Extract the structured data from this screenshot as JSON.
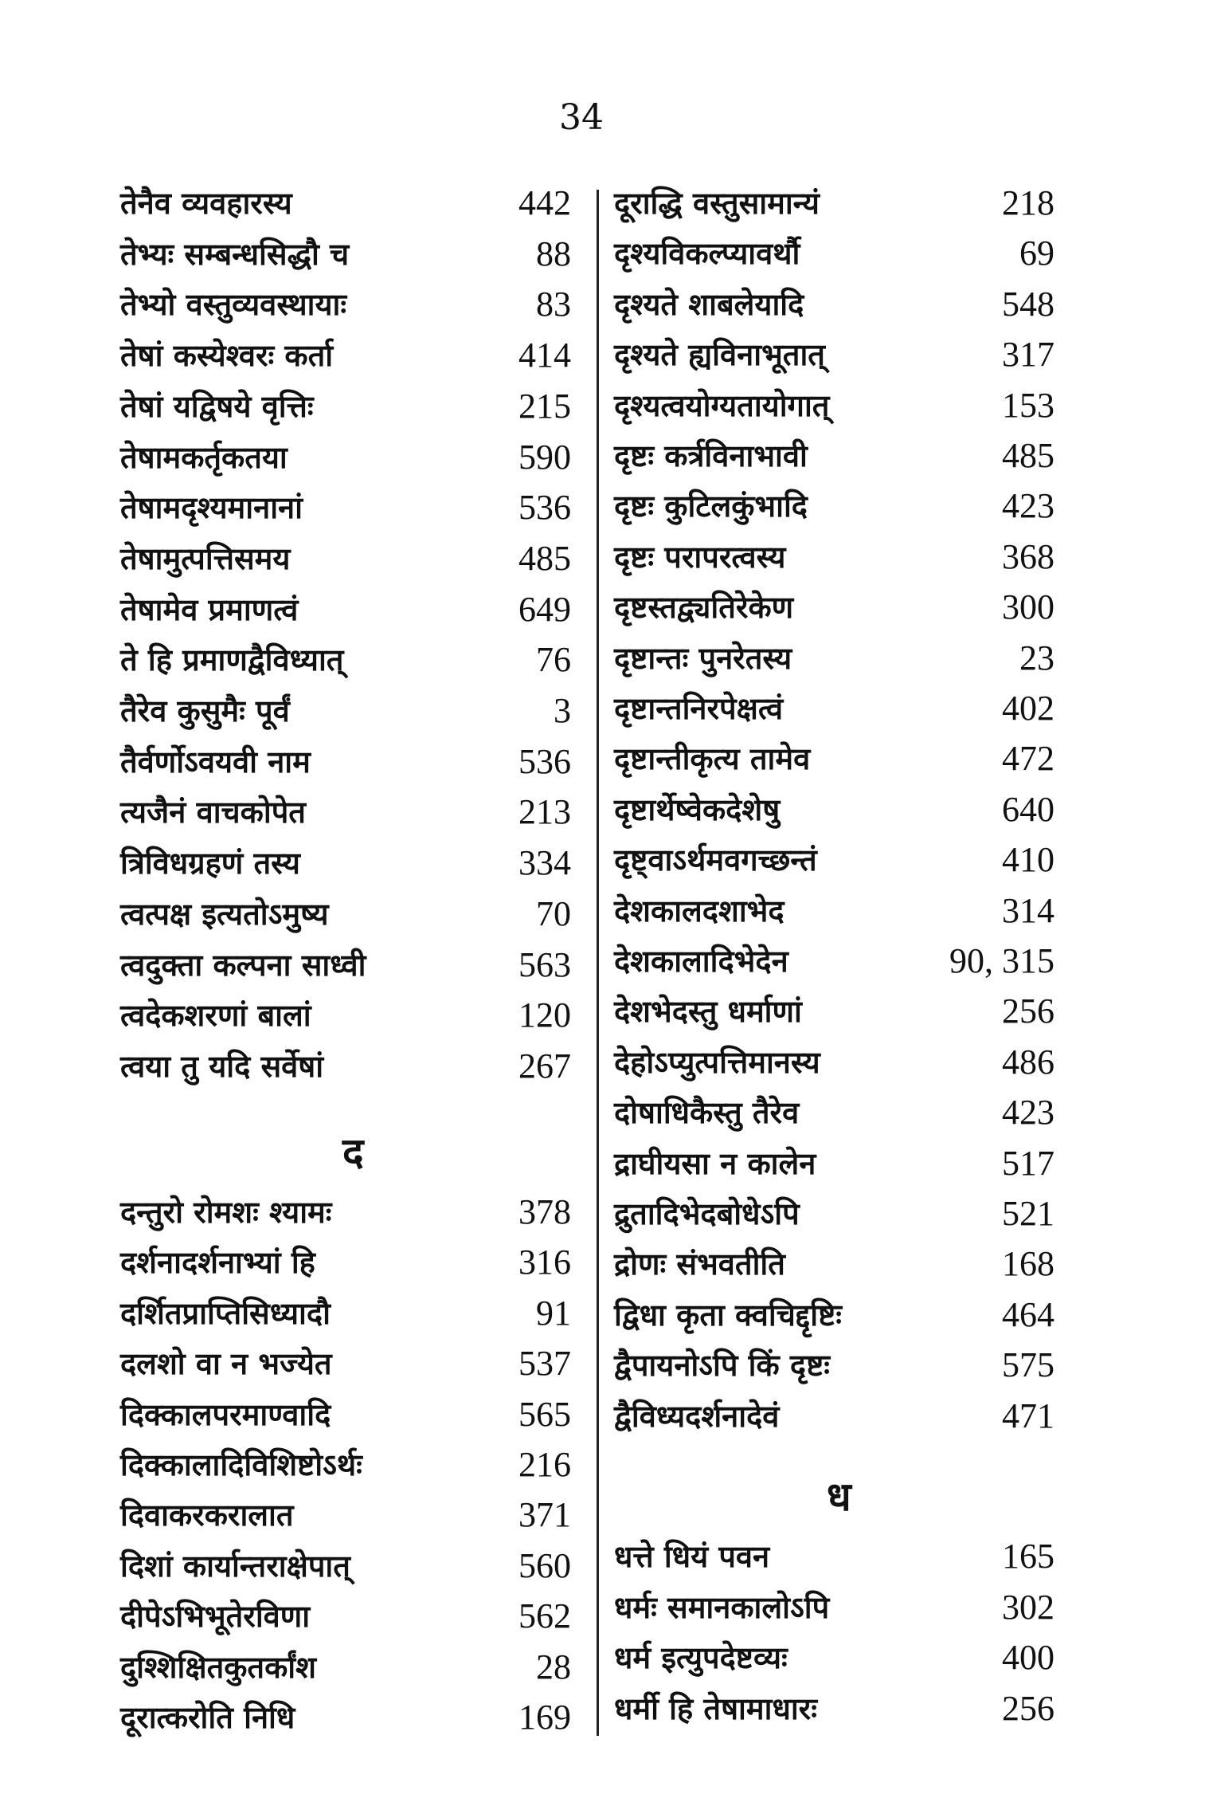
{
  "page_number": "34",
  "left": {
    "entries_top": [
      {
        "text": "तेनैव व्यवहारस्य",
        "page": "442"
      },
      {
        "text": "तेभ्यः सम्बन्धसिद्धौ च",
        "page": "88"
      },
      {
        "text": "तेभ्यो वस्तुव्यवस्थायाः",
        "page": "83"
      },
      {
        "text": "तेषां कस्येश्वरः कर्ता",
        "page": "414"
      },
      {
        "text": "तेषां यद्विषये वृत्तिः",
        "page": "215"
      },
      {
        "text": "तेषामकर्तृकतया",
        "page": "590"
      },
      {
        "text": "तेषामदृश्यमानानां",
        "page": "536"
      },
      {
        "text": "तेषामुत्पत्तिसमय",
        "page": "485"
      },
      {
        "text": "तेषामेव प्रमाणत्वं",
        "page": "649"
      },
      {
        "text": "ते हि प्रमाणद्वैविध्यात्",
        "page": "76"
      },
      {
        "text": "तैरेव कुसुमैः पूर्वं",
        "page": "3"
      },
      {
        "text": "तैर्वर्णोऽवयवी नाम",
        "page": "536"
      },
      {
        "text": "त्यजैनं वाचकोपेत",
        "page": "213"
      },
      {
        "text": "त्रिविधग्रहणं तस्य",
        "page": "334"
      },
      {
        "text": "त्वत्पक्ष इत्यतोऽमुष्य",
        "page": "70"
      },
      {
        "text": "त्वदुक्ता कल्पना साध्वी",
        "page": "563"
      },
      {
        "text": "त्वदेकशरणां बालां",
        "page": "120"
      },
      {
        "text": "त्वया तु यदि सर्वेषां",
        "page": "267"
      }
    ],
    "heading": "द",
    "entries_bottom": [
      {
        "text": "दन्तुरो रोमशः श्यामः",
        "page": "378"
      },
      {
        "text": "दर्शनादर्शनाभ्यां हि",
        "page": "316"
      },
      {
        "text": "दर्शितप्राप्तिसिध्यादौ",
        "page": "91"
      },
      {
        "text": "दलशो वा न भज्येत",
        "page": "537"
      },
      {
        "text": "दिक्कालपरमाण्वादि",
        "page": "565"
      },
      {
        "text": "दिक्कालादिविशिष्टोऽर्थः",
        "page": "216"
      },
      {
        "text": "दिवाकरकरालात",
        "page": "371"
      },
      {
        "text": "दिशां कार्यान्तराक्षेपात्",
        "page": "560"
      },
      {
        "text": "दीपेऽभिभूतेरविणा",
        "page": "562"
      },
      {
        "text": "दुश्शिक्षितकुतर्कांश",
        "page": "28"
      },
      {
        "text": "दूरात्करोति निधि",
        "page": "169"
      }
    ]
  },
  "right": {
    "entries_top": [
      {
        "text": "दूराद्धि वस्तुसामान्यं",
        "page": "218"
      },
      {
        "text": "दृश्यविकल्प्यावर्थौ",
        "page": "69"
      },
      {
        "text": "दृश्यते शाबलेयादि",
        "page": "548"
      },
      {
        "text": "दृश्यते ह्यविनाभूतात्",
        "page": "317"
      },
      {
        "text": "दृश्यत्वयोग्यतायोगात्",
        "page": "153"
      },
      {
        "text": "दृष्टः कर्त्रविनाभावी",
        "page": "485"
      },
      {
        "text": "दृष्टः कुटिलकुंभादि",
        "page": "423"
      },
      {
        "text": "दृष्टः परापरत्वस्य",
        "page": "368"
      },
      {
        "text": "दृष्टस्तद्व्यतिरेकेण",
        "page": "300"
      },
      {
        "text": "दृष्टान्तः पुनरेतस्य",
        "page": "23"
      },
      {
        "text": "दृष्टान्तनिरपेक्षत्वं",
        "page": "402"
      },
      {
        "text": "दृष्टान्तीकृत्य तामेव",
        "page": "472"
      },
      {
        "text": "दृष्टार्थेष्वेकदेशेषु",
        "page": "640"
      },
      {
        "text": "दृष्ट्वाऽर्थमवगच्छन्तं",
        "page": "410"
      },
      {
        "text": "देशकालदशाभेद",
        "page": "314"
      },
      {
        "text": "देशकालादिभेदेन",
        "page": "90, 315"
      },
      {
        "text": "देशभेदस्तु धर्माणां",
        "page": "256"
      },
      {
        "text": "देहोऽप्युत्पत्तिमानस्य",
        "page": "486"
      },
      {
        "text": "दोषाधिकैस्तु तैरेव",
        "page": "423"
      },
      {
        "text": "द्राघीयसा न कालेन",
        "page": "517"
      },
      {
        "text": "द्रुतादिभेदबोधेऽपि",
        "page": "521"
      },
      {
        "text": "द्रोणः संभवतीति",
        "page": "168"
      },
      {
        "text": "द्विधा कृता क्वचिद्दृष्टिः",
        "page": "464"
      },
      {
        "text": "द्वैपायनोऽपि किं दृष्टः",
        "page": "575"
      },
      {
        "text": "द्वैविध्यदर्शनादेवं",
        "page": "471"
      }
    ],
    "heading": "ध",
    "entries_bottom": [
      {
        "text": "धत्ते धियं पवन",
        "page": "165"
      },
      {
        "text": "धर्मः समानकालोऽपि",
        "page": "302"
      },
      {
        "text": "धर्म इत्युपदेष्टव्यः",
        "page": "400"
      },
      {
        "text": "धर्मी हि तेषामाधारः",
        "page": "256"
      }
    ]
  }
}
